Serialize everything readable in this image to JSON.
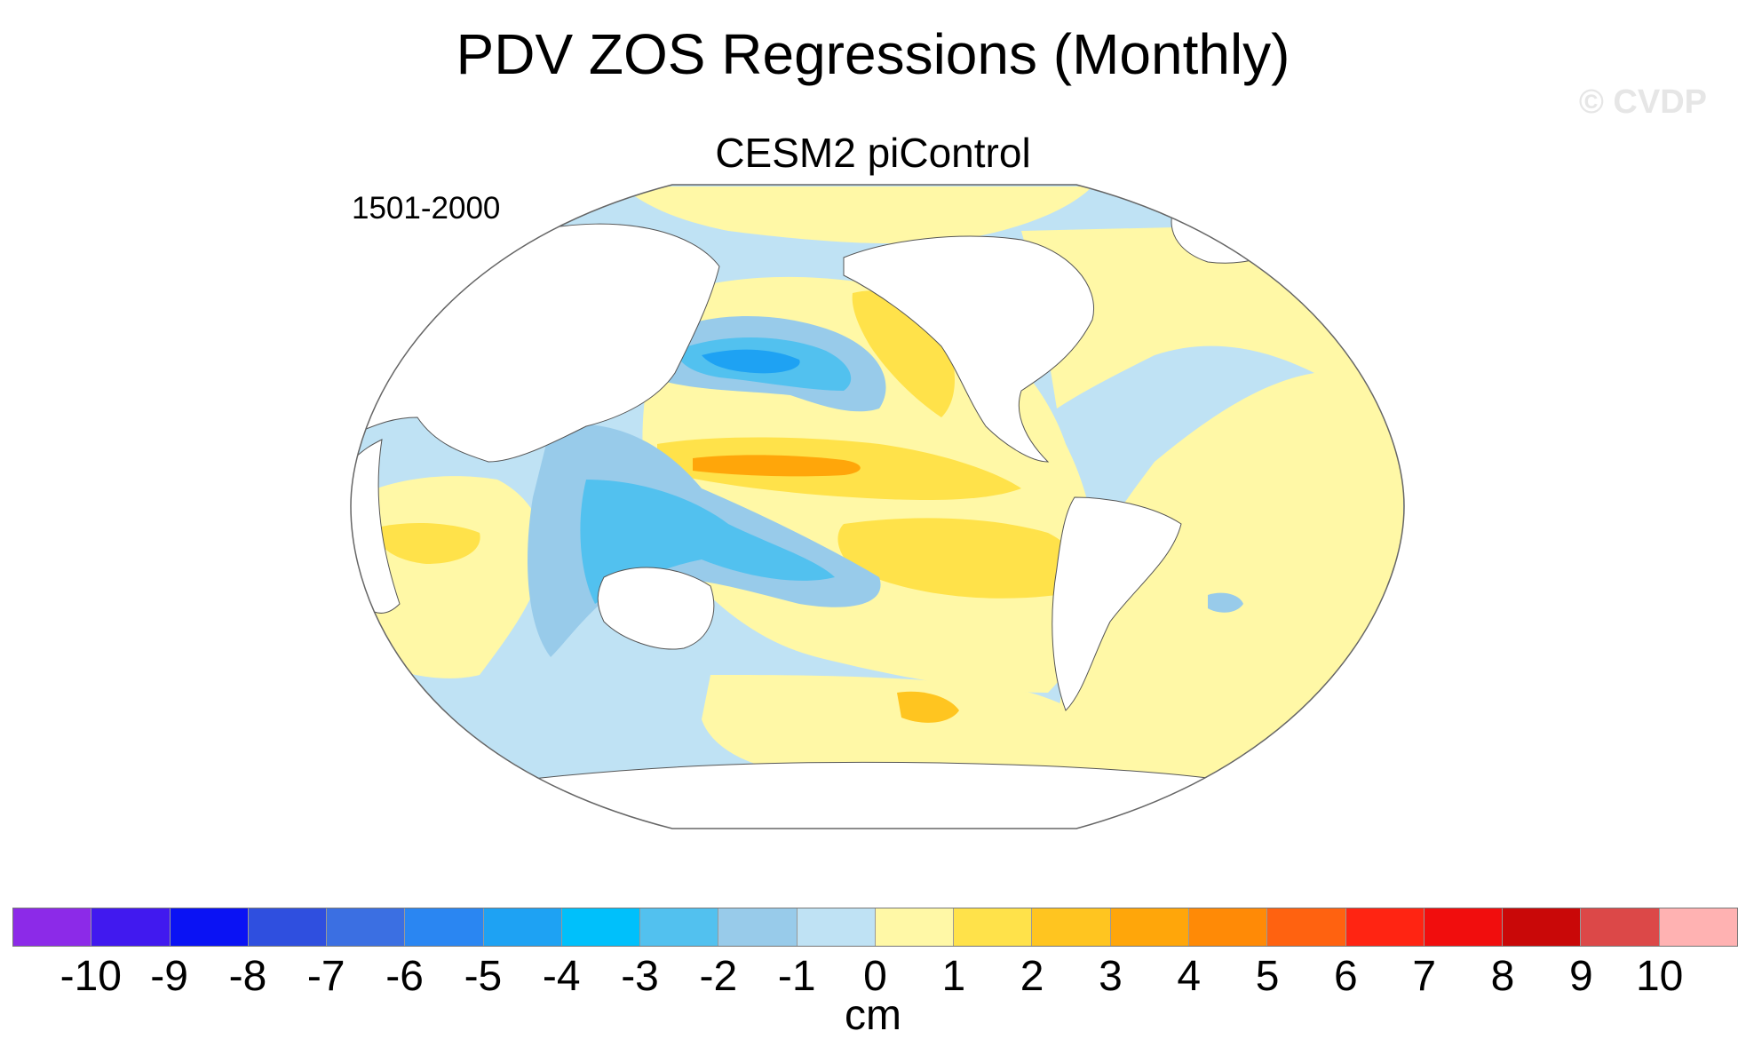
{
  "title": "PDV ZOS Regressions (Monthly)",
  "watermark": "© CVDP",
  "subtitle": "CESM2 piControl",
  "period": "1501-2000",
  "colorbar": {
    "units": "cm",
    "colors": [
      "#8c2ae8",
      "#4119ef",
      "#0a12f4",
      "#2f4fdf",
      "#3b6fe2",
      "#2a86f2",
      "#1ea2f3",
      "#00c0fb",
      "#52c1ef",
      "#98cbea",
      "#bfe2f4",
      "#fff8a6",
      "#ffe24a",
      "#ffc520",
      "#ffa60a",
      "#ff8a06",
      "#ff6210",
      "#ff2412",
      "#f10d0d",
      "#c90808",
      "#dc4848",
      "#ffb2b2"
    ],
    "labels": [
      "-10",
      "-9",
      "-8",
      "-7",
      "-6",
      "-5",
      "-4",
      "-3",
      "-2",
      "-1",
      "0",
      "1",
      "2",
      "3",
      "4",
      "5",
      "6",
      "7",
      "8",
      "9",
      "10"
    ]
  },
  "map": {
    "ocean_color": "#bfe2f4",
    "land_color": "#ffffff",
    "regions": [
      {
        "name": "north-atlantic-positive",
        "level": "0 to 1",
        "color": "#fff8a6"
      },
      {
        "name": "south-pacific-positive",
        "level": "0 to 1",
        "color": "#fff8a6"
      },
      {
        "name": "equatorial-pacific-positive",
        "level": "1 to 2",
        "color": "#ffe24a"
      },
      {
        "name": "equatorial-pacific-peak",
        "level": "3 to 4",
        "color": "#ffa60a"
      },
      {
        "name": "kuroshio-negative",
        "level": "-5 to -4",
        "color": "#1ea2f3"
      },
      {
        "name": "western-pacific-negative",
        "level": "-3 to -2",
        "color": "#52c1ef"
      }
    ]
  }
}
